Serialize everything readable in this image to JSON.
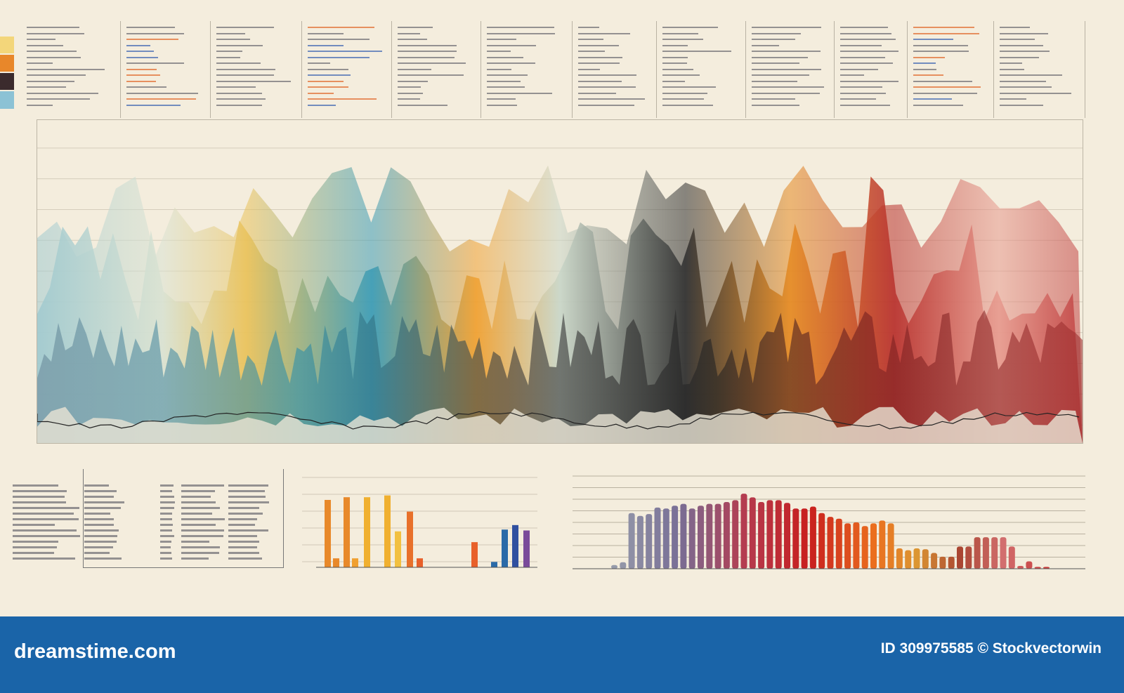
{
  "swatches": [
    "#f3d67a",
    "#e8872a",
    "#3b2b2d",
    "#8cc2d5"
  ],
  "palette": {
    "teal": "#3a9bb5",
    "yellow": "#eac25a",
    "orange": "#e58a22",
    "black": "#2a2a2a",
    "red": "#b8302c",
    "pink": "#e79a8e",
    "banner": "#1a64a8"
  },
  "left_bars": {
    "levels": [
      0.75,
      0.1,
      0.78,
      0.1,
      0.78,
      0.8,
      0.4,
      0.62,
      0.1,
      0.28,
      0.06,
      0.42,
      0.47,
      0.41
    ],
    "colors": [
      "#e8892a",
      "#e8892a",
      "#e8892a",
      "#f0a030",
      "#f0b030",
      "#f0b030",
      "#f2c040",
      "#e8702a",
      "#e8602a",
      "#e8602a",
      "#2a6aa8",
      "#2a6aa8",
      "#3050a0",
      "#7a4a9a"
    ]
  },
  "right_bars": {
    "levels": [
      0.04,
      0.07,
      0.6,
      0.57,
      0.59,
      0.66,
      0.65,
      0.68,
      0.7,
      0.65,
      0.68,
      0.7,
      0.7,
      0.72,
      0.74,
      0.81,
      0.77,
      0.72,
      0.74,
      0.74,
      0.71,
      0.65,
      0.65,
      0.67,
      0.6,
      0.56,
      0.54,
      0.49,
      0.5,
      0.46,
      0.49,
      0.52,
      0.49,
      0.22,
      0.2,
      0.22,
      0.21,
      0.17,
      0.13,
      0.13,
      0.24,
      0.24,
      0.34,
      0.34,
      0.34,
      0.34,
      0.24,
      0.03,
      0.08,
      0.02,
      0.02
    ]
  },
  "footer": {
    "brand": "dreamstime.com",
    "credit": "ID 309975585 © Stockvectorwin"
  }
}
